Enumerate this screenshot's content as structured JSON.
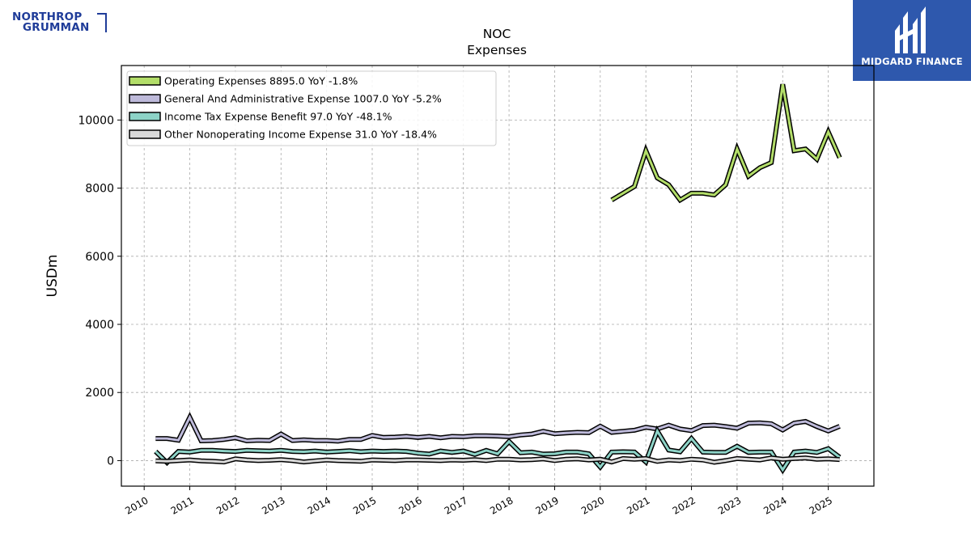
{
  "brand": {
    "company_logo_line1": "NORTHROP",
    "company_logo_line2": "GRUMMAN",
    "badge_name": "MIDGARD FINANCE",
    "logo_color": "#1f3c99",
    "badge_color": "#2e58ad"
  },
  "chart_data": {
    "type": "line",
    "title": "NOC",
    "subtitle": "Expenses",
    "xlabel": "",
    "ylabel": "USDm",
    "xlim": [
      2009.5,
      2026.0
    ],
    "ylim": [
      -750,
      11600
    ],
    "yticks": [
      0,
      2000,
      4000,
      6000,
      8000,
      10000
    ],
    "xticks": [
      "2010",
      "2011",
      "2012",
      "2013",
      "2014",
      "2015",
      "2016",
      "2017",
      "2018",
      "2019",
      "2020",
      "2021",
      "2022",
      "2023",
      "2024",
      "2025"
    ],
    "grid": true,
    "legend_position": "top-left",
    "series": [
      {
        "name": "Operating Expenses",
        "legend_label": "Operating Expenses  8895.0 YoY -1.8%",
        "color": "#b3de69",
        "x": [
          2020.25,
          2020.5,
          2020.75,
          2021.0,
          2021.25,
          2021.5,
          2021.75,
          2022.0,
          2022.25,
          2022.5,
          2022.75,
          2023.0,
          2023.25,
          2023.5,
          2023.75,
          2024.0,
          2024.25,
          2024.5,
          2024.75,
          2025.0,
          2025.25
        ],
        "values": [
          7650,
          7850,
          8050,
          9100,
          8300,
          8100,
          7650,
          7850,
          7850,
          7800,
          8100,
          9150,
          8350,
          8600,
          8750,
          11050,
          9100,
          9150,
          8850,
          9650,
          8895
        ]
      },
      {
        "name": "General And Administrative Expense",
        "legend_label": "General And Administrative Expense  1007.0 YoY -5.2%",
        "color": "#bebada",
        "x": [
          2010.25,
          2010.5,
          2010.75,
          2011.0,
          2011.25,
          2011.5,
          2011.75,
          2012.0,
          2012.25,
          2012.5,
          2012.75,
          2013.0,
          2013.25,
          2013.5,
          2013.75,
          2014.0,
          2014.25,
          2014.5,
          2014.75,
          2015.0,
          2015.25,
          2015.5,
          2015.75,
          2016.0,
          2016.25,
          2016.5,
          2016.75,
          2017.0,
          2017.25,
          2017.5,
          2017.75,
          2018.0,
          2018.25,
          2018.5,
          2018.75,
          2019.0,
          2019.25,
          2019.5,
          2019.75,
          2020.0,
          2020.25,
          2020.5,
          2020.75,
          2021.0,
          2021.25,
          2021.5,
          2021.75,
          2022.0,
          2022.25,
          2022.5,
          2022.75,
          2023.0,
          2023.25,
          2023.5,
          2023.75,
          2024.0,
          2024.25,
          2024.5,
          2024.75,
          2025.0,
          2025.25
        ],
        "values": [
          650,
          650,
          600,
          1270,
          580,
          590,
          620,
          670,
          580,
          600,
          590,
          780,
          590,
          610,
          590,
          590,
          570,
          620,
          620,
          740,
          680,
          690,
          710,
          680,
          710,
          670,
          710,
          700,
          730,
          730,
          720,
          700,
          750,
          780,
          860,
          790,
          810,
          830,
          820,
          1010,
          830,
          860,
          890,
          980,
          930,
          1040,
          930,
          880,
          1030,
          1040,
          1000,
          950,
          1100,
          1110,
          1080,
          900,
          1100,
          1150,
          1000,
          870,
          1007
        ]
      },
      {
        "name": "Income Tax Expense Benefit",
        "legend_label": "Income Tax Expense Benefit  97.0 YoY -48.1%",
        "color": "#8dd3c7",
        "x": [
          2010.25,
          2010.5,
          2010.75,
          2011.0,
          2011.25,
          2011.5,
          2011.75,
          2012.0,
          2012.25,
          2012.5,
          2012.75,
          2013.0,
          2013.25,
          2013.5,
          2013.75,
          2014.0,
          2014.25,
          2014.5,
          2014.75,
          2015.0,
          2015.25,
          2015.5,
          2015.75,
          2016.0,
          2016.25,
          2016.5,
          2016.75,
          2017.0,
          2017.25,
          2017.5,
          2017.75,
          2018.0,
          2018.25,
          2018.5,
          2018.75,
          2019.0,
          2019.25,
          2019.5,
          2019.75,
          2020.0,
          2020.25,
          2020.5,
          2020.75,
          2021.0,
          2021.25,
          2021.5,
          2021.75,
          2022.0,
          2022.25,
          2022.5,
          2022.75,
          2023.0,
          2023.25,
          2023.5,
          2023.75,
          2024.0,
          2024.25,
          2024.5,
          2024.75,
          2025.0,
          2025.25
        ],
        "values": [
          270,
          -60,
          270,
          250,
          300,
          300,
          280,
          270,
          300,
          290,
          280,
          300,
          270,
          260,
          280,
          250,
          270,
          290,
          260,
          280,
          270,
          280,
          270,
          220,
          190,
          280,
          240,
          280,
          180,
          300,
          200,
          560,
          230,
          250,
          190,
          200,
          250,
          250,
          200,
          -190,
          250,
          260,
          250,
          -40,
          870,
          310,
          260,
          650,
          250,
          240,
          240,
          420,
          240,
          250,
          250,
          -270,
          250,
          280,
          240,
          350,
          97
        ]
      },
      {
        "name": "Other Nonoperating Income Expense",
        "legend_label": "Other Nonoperating Income Expense  31.0 YoY -18.4%",
        "color": "#d9d9d9",
        "x": [
          2010.25,
          2010.5,
          2010.75,
          2011.0,
          2011.25,
          2011.5,
          2011.75,
          2012.0,
          2012.25,
          2012.5,
          2012.75,
          2013.0,
          2013.25,
          2013.5,
          2013.75,
          2014.0,
          2014.25,
          2014.5,
          2014.75,
          2015.0,
          2015.25,
          2015.5,
          2015.75,
          2016.0,
          2016.25,
          2016.5,
          2016.75,
          2017.0,
          2017.25,
          2017.5,
          2017.75,
          2018.0,
          2018.25,
          2018.5,
          2018.75,
          2019.0,
          2019.25,
          2019.5,
          2019.75,
          2020.0,
          2020.25,
          2020.5,
          2020.75,
          2021.0,
          2021.25,
          2021.5,
          2021.75,
          2022.0,
          2022.25,
          2022.5,
          2022.75,
          2023.0,
          2023.25,
          2023.5,
          2023.75,
          2024.0,
          2024.25,
          2024.5,
          2024.75,
          2025.0,
          2025.25
        ],
        "values": [
          -10,
          -20,
          0,
          20,
          -10,
          -20,
          -40,
          50,
          20,
          0,
          10,
          30,
          0,
          -40,
          -10,
          20,
          0,
          -10,
          -20,
          20,
          10,
          0,
          20,
          20,
          10,
          0,
          20,
          10,
          30,
          0,
          40,
          40,
          20,
          30,
          50,
          0,
          40,
          50,
          20,
          40,
          -40,
          60,
          40,
          60,
          -20,
          20,
          0,
          40,
          20,
          -50,
          0,
          60,
          40,
          20,
          80,
          40,
          60,
          80,
          40,
          50,
          31
        ]
      }
    ]
  }
}
